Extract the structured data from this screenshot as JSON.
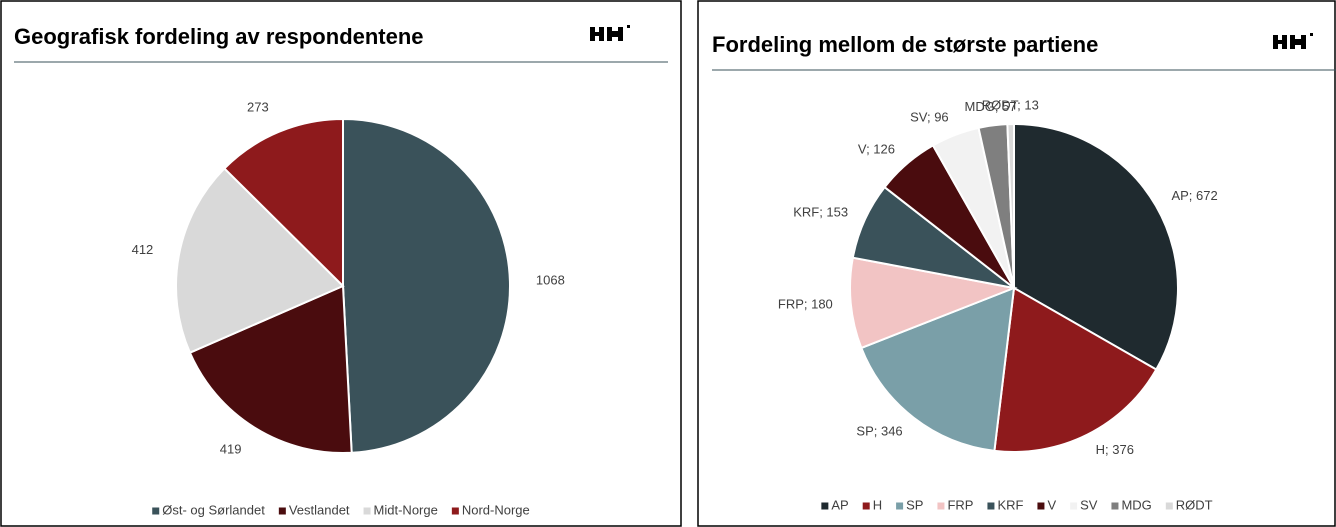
{
  "chart_data": [
    {
      "type": "pie",
      "title": "Geografisk fordeling av respondentene",
      "categories": [
        "Øst- og Sørlandet",
        "Vestlandet",
        "Midt-Norge",
        "Nord-Norge"
      ],
      "values": [
        1068,
        419,
        412,
        273
      ],
      "colors": [
        "#3a525a",
        "#4a0c0e",
        "#d9d9d9",
        "#8e1a1c"
      ],
      "legend": "bottom"
    },
    {
      "type": "pie",
      "title": "Fordeling mellom de største partiene",
      "categories": [
        "AP",
        "H",
        "SP",
        "FRP",
        "KRF",
        "V",
        "SV",
        "MDG",
        "RØDT"
      ],
      "values": [
        672,
        376,
        346,
        180,
        153,
        126,
        96,
        57,
        13
      ],
      "value_labels": [
        "AP; 672",
        "H; 376",
        "SP; 346",
        "FRP; 180",
        "KRF; 153",
        "V; 126",
        "SV; 96",
        "MDG; 57",
        "RØDT; 13"
      ],
      "colors": [
        "#1f2a2f",
        "#8e1a1c",
        "#7a9fa8",
        "#f2c4c4",
        "#3a525a",
        "#4a0c0e",
        "#f2f2f2",
        "#7f7f7f",
        "#d9d9d9"
      ],
      "legend": "bottom"
    }
  ]
}
